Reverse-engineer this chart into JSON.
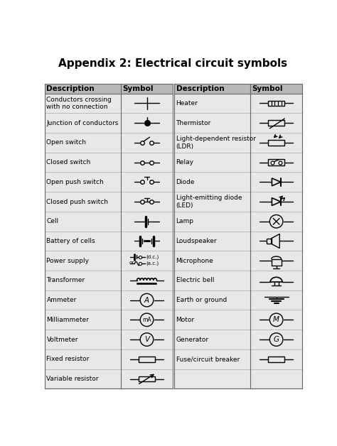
{
  "title": "Appendix 2: Electrical circuit symbols",
  "title_fontsize": 11,
  "header_bg": "#b8b8b8",
  "header_fontsize": 7.5,
  "row_fontsize": 6.5,
  "bg_color": "#e8e8e8",
  "border_color": "#666666",
  "text_color": "#000000",
  "left_rows": [
    "Conductors crossing\nwith no connection",
    "Junction of conductors",
    "Open switch",
    "Closed switch",
    "Open push switch",
    "Closed push switch",
    "Cell",
    "Battery of cells",
    "Power supply",
    "Transformer",
    "Ammeter",
    "Milliammeter",
    "Voltmeter",
    "Fixed resistor",
    "Variable resistor"
  ],
  "right_rows": [
    "Heater",
    "Thermistor",
    "Light-dependent resistor\n(LDR)",
    "Relay",
    "Diode",
    "Light-emitting diode\n(LED)",
    "Lamp",
    "Loudspeaker",
    "Microphone",
    "Electric bell",
    "Earth or ground",
    "Motor",
    "Generator",
    "Fuse/circuit breaker",
    ""
  ]
}
